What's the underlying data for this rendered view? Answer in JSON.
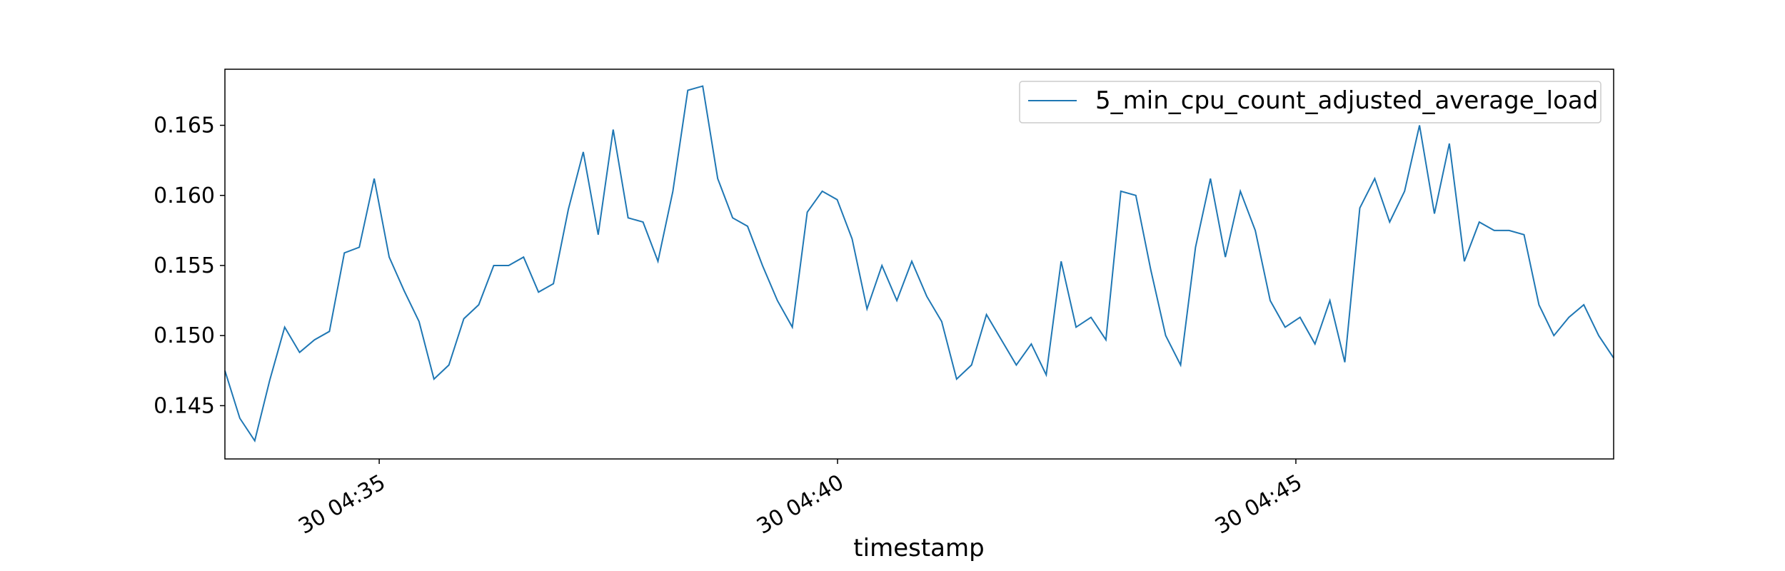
{
  "chart_data": {
    "type": "line",
    "title": "",
    "xlabel": "timestamp",
    "ylabel": "",
    "x_start": "30 04:33:19",
    "x_end": "30 04:48:28",
    "xlim": [
      "30 04:33:19",
      "30 04:48:28"
    ],
    "ylim": [
      0.1412,
      0.169
    ],
    "yticks": [
      0.145,
      0.15,
      0.155,
      0.16,
      0.165
    ],
    "ytick_labels": [
      "0.145",
      "0.150",
      "0.155",
      "0.160",
      "0.165"
    ],
    "xticks": [
      "30 04:35",
      "30 04:40",
      "30 04:45"
    ],
    "xtick_labels": [
      "30 04:35",
      "30 04:40",
      "30 04:45"
    ],
    "grid": false,
    "legend_position": "top-right",
    "series": [
      {
        "name": "5_min_cpu_count_adjusted_average_load",
        "color": "#1f77b4",
        "values": [
          0.1475,
          0.1441,
          0.1425,
          0.1468,
          0.1506,
          0.1488,
          0.1497,
          0.1503,
          0.1559,
          0.1563,
          0.1612,
          0.1556,
          0.1532,
          0.151,
          0.1469,
          0.1479,
          0.1512,
          0.1522,
          0.155,
          0.155,
          0.1556,
          0.1531,
          0.1537,
          0.159,
          0.1631,
          0.1572,
          0.1647,
          0.1584,
          0.1581,
          0.1553,
          0.1603,
          0.1675,
          0.1678,
          0.1612,
          0.1584,
          0.1578,
          0.155,
          0.1525,
          0.1506,
          0.1588,
          0.1603,
          0.1597,
          0.1569,
          0.1519,
          0.155,
          0.1525,
          0.1553,
          0.1528,
          0.151,
          0.1469,
          0.1479,
          0.1515,
          0.1497,
          0.1479,
          0.1494,
          0.1472,
          0.1553,
          0.1506,
          0.1513,
          0.1497,
          0.1603,
          0.16,
          0.1547,
          0.15,
          0.1479,
          0.1563,
          0.1612,
          0.1556,
          0.1603,
          0.1575,
          0.1525,
          0.1506,
          0.1513,
          0.1494,
          0.1525,
          0.1481,
          0.1591,
          0.1612,
          0.1581,
          0.1603,
          0.165,
          0.1587,
          0.1637,
          0.1553,
          0.1581,
          0.1575,
          0.1575,
          0.1572,
          0.1522,
          0.15,
          0.1513,
          0.1522,
          0.15,
          0.1484
        ]
      }
    ]
  }
}
